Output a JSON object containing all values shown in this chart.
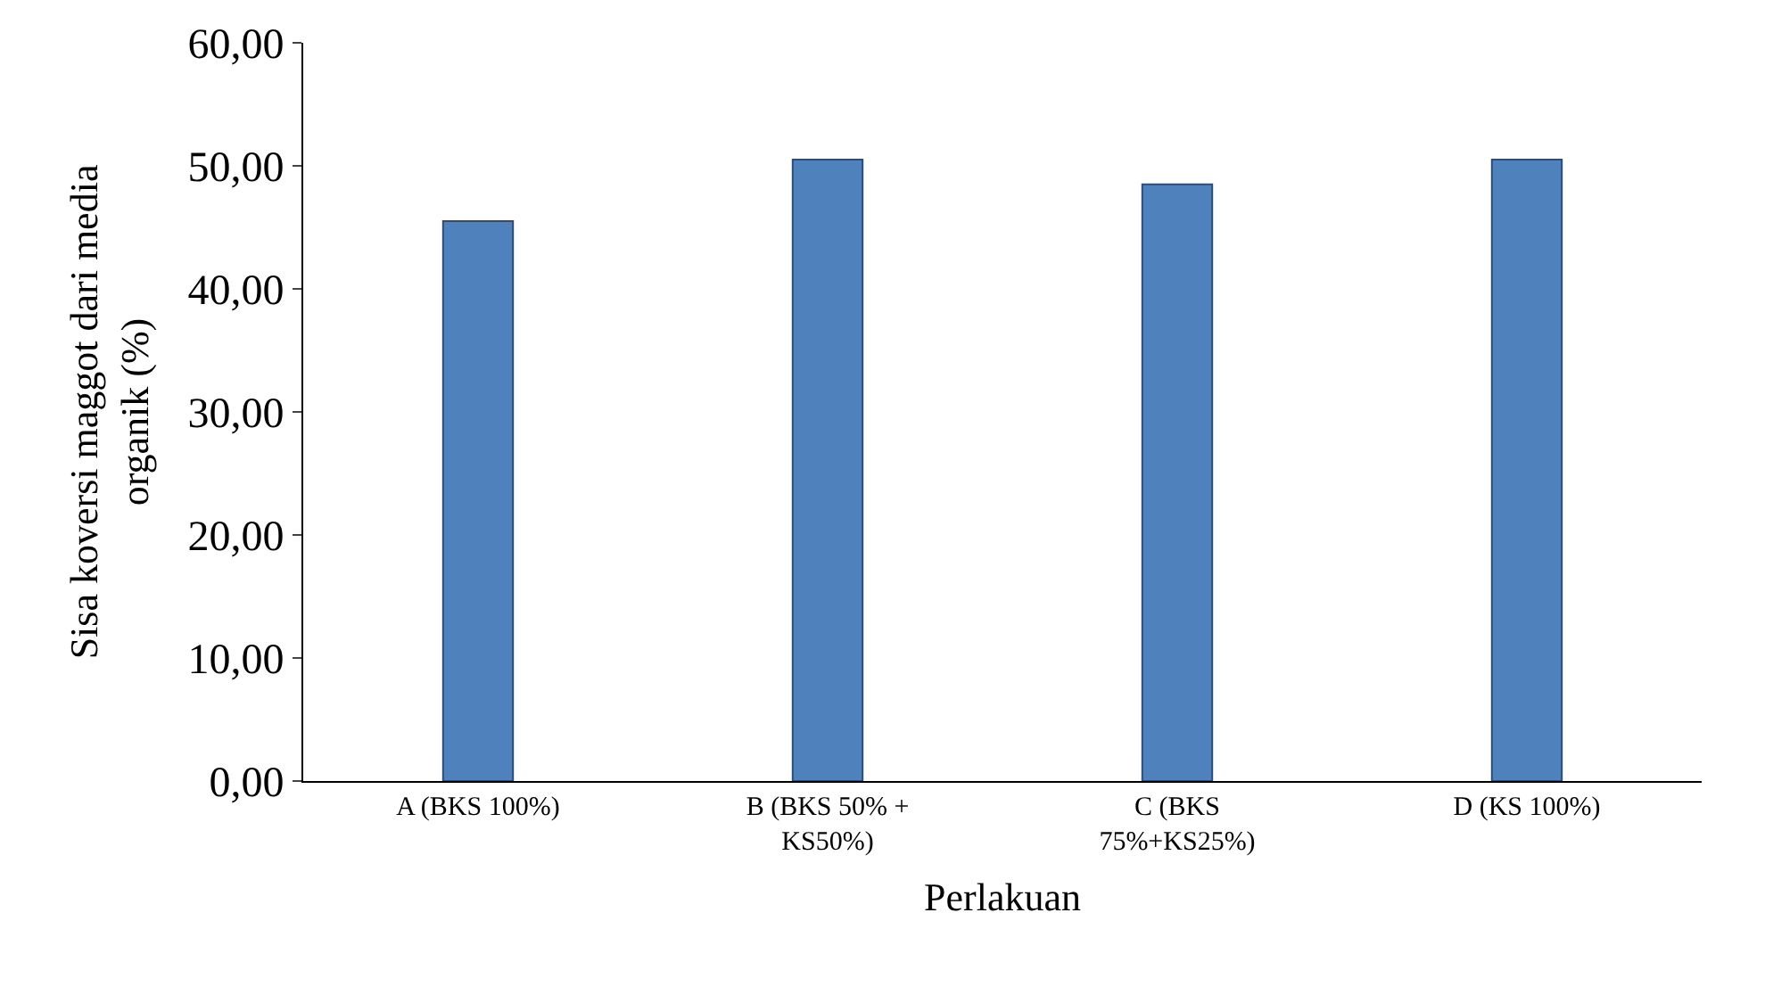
{
  "chart_data": {
    "type": "bar",
    "categories": [
      "A (BKS 100%)",
      "B (BKS 50% + KS50%)",
      "C (BKS 75%+KS25%)",
      "D (KS 100%)"
    ],
    "values": [
      45.5,
      50.5,
      48.5,
      50.5
    ],
    "color": "#4f81bd",
    "xlabel": "Perlakuan",
    "ylabel": "Sisa koversi maggot dari media organik (%)",
    "ylim": [
      0,
      60
    ],
    "yticks": [
      {
        "value": 0,
        "label": "0,00"
      },
      {
        "value": 10,
        "label": "10,00"
      },
      {
        "value": 20,
        "label": "20,00"
      },
      {
        "value": 30,
        "label": "30,00"
      },
      {
        "value": 40,
        "label": "40,00"
      },
      {
        "value": 50,
        "label": "50,00"
      },
      {
        "value": 60,
        "label": "60,00"
      }
    ],
    "legend": false
  }
}
